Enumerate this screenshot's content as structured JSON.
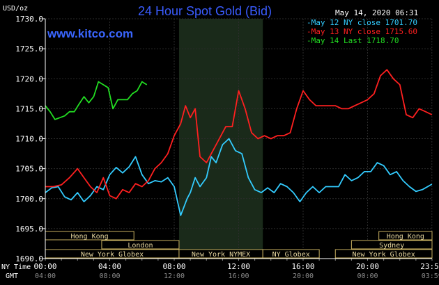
{
  "chart_data": {
    "type": "line",
    "title": "24 Hour Spot Gold (Bid)",
    "watermark": "www.kitco.com",
    "date_label": "May 14, 2020 06:31",
    "ylabel": "USD/oz",
    "ylim": [
      1690.0,
      1730.0
    ],
    "y_ticks": [
      "1730.0",
      "1725.0",
      "1720.0",
      "1715.0",
      "1710.0",
      "1705.0",
      "1700.0",
      "1695.0",
      "1690.0"
    ],
    "grid": true,
    "legend_position": "top-right",
    "x_row_labels": {
      "ny": "NY Time",
      "gmt": "GMT"
    },
    "x_ticks_ny": [
      "00:00",
      "04:00",
      "08:00",
      "12:00",
      "16:00",
      "20:00",
      "23:59"
    ],
    "x_ticks_gmt": [
      "04:00",
      "08:00",
      "12:00",
      "16:00",
      "20:00",
      "00:00",
      "03:59"
    ],
    "shaded_session": {
      "start_hour": 8.3,
      "end_hour": 13.5
    },
    "sessions": [
      {
        "name": "Hong Kong",
        "start": 0.0,
        "end": 5.5,
        "row": 0
      },
      {
        "name": "Hong Kong",
        "start": 20.7,
        "end": 24.0,
        "row": 0
      },
      {
        "name": "London",
        "start": 3.5,
        "end": 8.3,
        "row": 1
      },
      {
        "name": "Sydney",
        "start": 19.0,
        "end": 24.0,
        "row": 1
      },
      {
        "name": "New York Globex",
        "start": 0.0,
        "end": 8.3,
        "row": 2
      },
      {
        "name": "New York NYMEX",
        "start": 8.3,
        "end": 13.5,
        "row": 2
      },
      {
        "name": "NY Globex",
        "start": 13.5,
        "end": 17.0,
        "row": 2
      },
      {
        "name": "New York Globex",
        "start": 18.0,
        "end": 24.0,
        "row": 2
      }
    ],
    "series": [
      {
        "name": "May 12 NY close 1701.70",
        "color": "#33ccff",
        "x": [
          0.0,
          0.4,
          0.8,
          1.2,
          1.6,
          2.0,
          2.4,
          2.8,
          3.2,
          3.6,
          4.0,
          4.4,
          4.8,
          5.2,
          5.6,
          6.0,
          6.4,
          6.8,
          7.2,
          7.6,
          8.0,
          8.4,
          8.8,
          9.0,
          9.3,
          9.6,
          10.0,
          10.3,
          10.6,
          11.0,
          11.4,
          11.8,
          12.2,
          12.6,
          13.0,
          13.4,
          13.8,
          14.2,
          14.6,
          15.0,
          15.4,
          15.8,
          16.2,
          16.6,
          17.0,
          17.4,
          17.8,
          18.2,
          18.6,
          19.0,
          19.4,
          19.8,
          20.2,
          20.6,
          21.0,
          21.4,
          21.8,
          22.2,
          22.6,
          23.0,
          23.4,
          23.99
        ],
        "values": [
          1701.0,
          1701.8,
          1702.0,
          1700.3,
          1699.8,
          1701.0,
          1699.5,
          1700.5,
          1702.0,
          1701.5,
          1704.0,
          1705.2,
          1704.3,
          1705.3,
          1707.0,
          1704.0,
          1702.5,
          1703.0,
          1702.8,
          1703.5,
          1702.0,
          1697.2,
          1700.0,
          1701.0,
          1703.5,
          1702.0,
          1703.5,
          1707.0,
          1706.0,
          1709.0,
          1710.0,
          1708.0,
          1707.5,
          1703.5,
          1701.5,
          1701.0,
          1701.8,
          1701.0,
          1702.5,
          1702.0,
          1701.0,
          1699.5,
          1701.0,
          1702.0,
          1701.0,
          1702.0,
          1702.0,
          1702.0,
          1704.0,
          1703.0,
          1703.5,
          1704.5,
          1704.5,
          1706.0,
          1705.5,
          1704.0,
          1704.5,
          1703.0,
          1702.0,
          1701.2,
          1701.5,
          1702.4
        ]
      },
      {
        "name": "May 13 NY close 1715.60",
        "color": "#ff2020",
        "x": [
          0.0,
          0.5,
          1.0,
          1.5,
          2.0,
          2.4,
          2.8,
          3.2,
          3.6,
          4.0,
          4.4,
          4.8,
          5.2,
          5.6,
          6.0,
          6.4,
          6.8,
          7.2,
          7.6,
          8.0,
          8.4,
          8.7,
          9.0,
          9.3,
          9.6,
          10.0,
          10.4,
          10.8,
          11.2,
          11.6,
          12.0,
          12.4,
          12.8,
          13.2,
          13.6,
          14.0,
          14.4,
          14.8,
          15.2,
          15.6,
          16.0,
          16.4,
          16.8,
          17.2,
          17.6,
          18.0,
          18.4,
          18.8,
          19.2,
          19.6,
          20.0,
          20.4,
          20.8,
          21.2,
          21.6,
          22.0,
          22.4,
          22.8,
          23.2,
          23.6,
          23.99
        ],
        "values": [
          1702.0,
          1702.0,
          1702.3,
          1703.5,
          1705.0,
          1703.5,
          1702.0,
          1701.0,
          1703.5,
          1700.5,
          1700.0,
          1701.5,
          1701.0,
          1702.5,
          1702.0,
          1703.0,
          1705.0,
          1706.0,
          1707.5,
          1710.5,
          1712.5,
          1715.5,
          1713.5,
          1715.0,
          1707.0,
          1706.0,
          1708.0,
          1710.0,
          1712.0,
          1712.0,
          1718.0,
          1715.0,
          1711.0,
          1710.0,
          1710.5,
          1710.0,
          1710.5,
          1710.5,
          1711.0,
          1715.0,
          1718.0,
          1716.5,
          1715.5,
          1715.5,
          1715.5,
          1715.5,
          1715.0,
          1715.0,
          1715.5,
          1716.0,
          1716.5,
          1717.5,
          1720.5,
          1721.5,
          1720.0,
          1719.0,
          1714.0,
          1713.5,
          1715.0,
          1714.5,
          1714.0
        ]
      },
      {
        "name": "May 14 Last 1718.70",
        "color": "#22dd22",
        "x": [
          0.0,
          0.3,
          0.6,
          0.9,
          1.2,
          1.5,
          1.8,
          2.1,
          2.4,
          2.7,
          3.0,
          3.3,
          3.6,
          3.9,
          4.2,
          4.5,
          4.8,
          5.1,
          5.4,
          5.7,
          6.0,
          6.3
        ],
        "values": [
          1715.5,
          1714.5,
          1713.2,
          1713.5,
          1713.8,
          1714.5,
          1714.5,
          1715.8,
          1717.0,
          1716.0,
          1717.0,
          1719.5,
          1719.0,
          1718.5,
          1715.0,
          1716.5,
          1716.5,
          1716.5,
          1717.5,
          1718.0,
          1719.5,
          1719.0
        ]
      }
    ]
  }
}
